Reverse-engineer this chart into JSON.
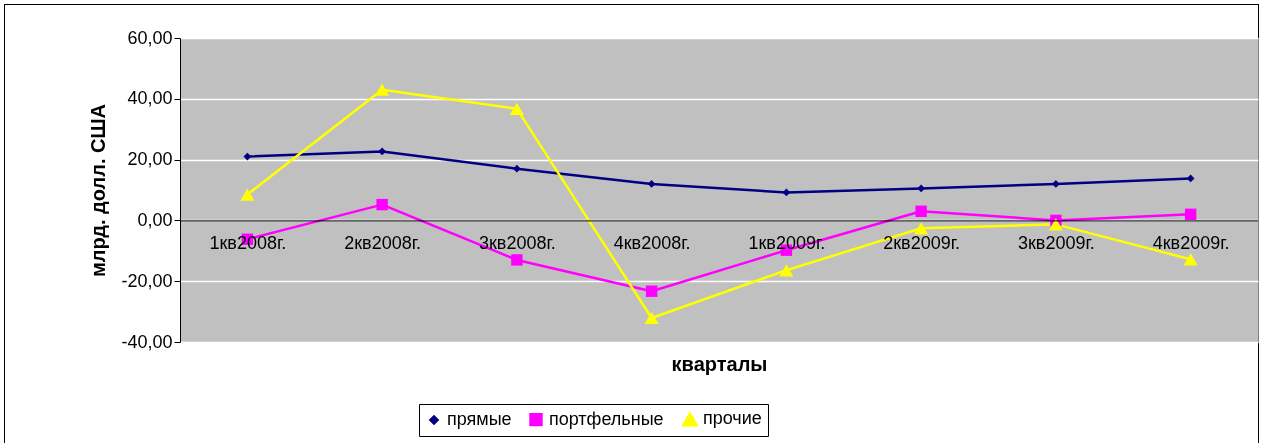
{
  "chart_data": {
    "type": "line",
    "xlabel": "кварталы",
    "ylabel": "млрд. долл. США",
    "categories": [
      "1кв2008г.",
      "2кв2008г.",
      "3кв2008г.",
      "4кв2008г.",
      "1кв2009г.",
      "2кв2009г.",
      "3кв2009г.",
      "4кв2009г."
    ],
    "series": [
      {
        "name": "прямые",
        "color": "#000080",
        "marker": "diamond",
        "values": [
          21,
          22.7,
          17,
          12,
          9.2,
          10.5,
          12,
          13.8
        ]
      },
      {
        "name": "портфельные",
        "color": "#ff00ff",
        "marker": "square",
        "values": [
          -6.2,
          5.2,
          -13,
          -23.3,
          -9.8,
          3,
          0,
          2
        ]
      },
      {
        "name": "прочие",
        "color": "#ffff00",
        "marker": "triangle",
        "values": [
          8.5,
          43,
          36.7,
          -32.1,
          -16.4,
          -2.6,
          -1.3,
          -12.8
        ]
      }
    ],
    "ylim": [
      -40,
      60
    ],
    "yticks": [
      {
        "value": -40,
        "label": "-40,00"
      },
      {
        "value": -20,
        "label": "-20,00"
      },
      {
        "value": 0,
        "label": "0,00"
      },
      {
        "value": 20,
        "label": "20,00"
      },
      {
        "value": 40,
        "label": "40,00"
      },
      {
        "value": 60,
        "label": "60,00"
      }
    ],
    "grid": "y",
    "legend": "bottom"
  }
}
